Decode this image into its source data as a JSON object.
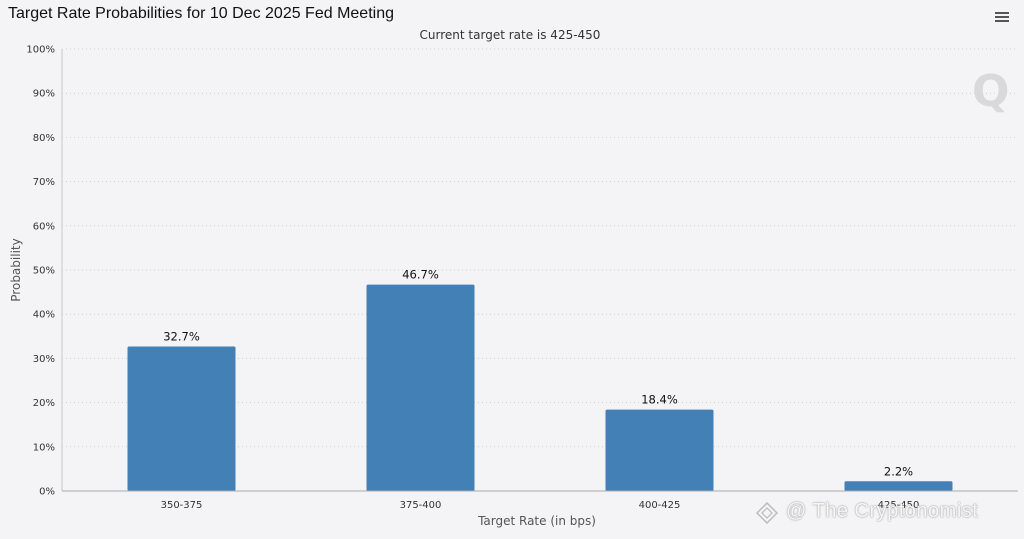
{
  "header": {
    "title": "Target Rate Probabilities for 10 Dec 2025 Fed Meeting",
    "menu_icon": "hamburger-menu-icon"
  },
  "chart_data": {
    "type": "bar",
    "title": "Target Rate Probabilities for 10 Dec 2025 Fed Meeting",
    "subtitle": "Current target rate is 425-450",
    "xlabel": "Target Rate (in bps)",
    "ylabel": "Probability",
    "categories": [
      "350-375",
      "375-400",
      "400-425",
      "425-450"
    ],
    "values": [
      32.7,
      46.7,
      18.4,
      2.2
    ],
    "data_labels": [
      "32.7%",
      "46.7%",
      "18.4%",
      "2.2%"
    ],
    "ylim": [
      0,
      100
    ],
    "yticks": [
      0,
      10,
      20,
      30,
      40,
      50,
      60,
      70,
      80,
      90,
      100
    ],
    "ytick_labels": [
      "0%",
      "10%",
      "20%",
      "30%",
      "40%",
      "50%",
      "60%",
      "70%",
      "80%",
      "90%",
      "100%"
    ],
    "grid": true,
    "bar_color": "#4380b6",
    "legend": "none"
  },
  "watermark": {
    "brand_mark": "Q",
    "credit_text": "@ The Cryptonomist"
  },
  "colors": {
    "background": "#f4f4f6",
    "bar": "#4380b6",
    "grid": "#cfcfd4"
  }
}
